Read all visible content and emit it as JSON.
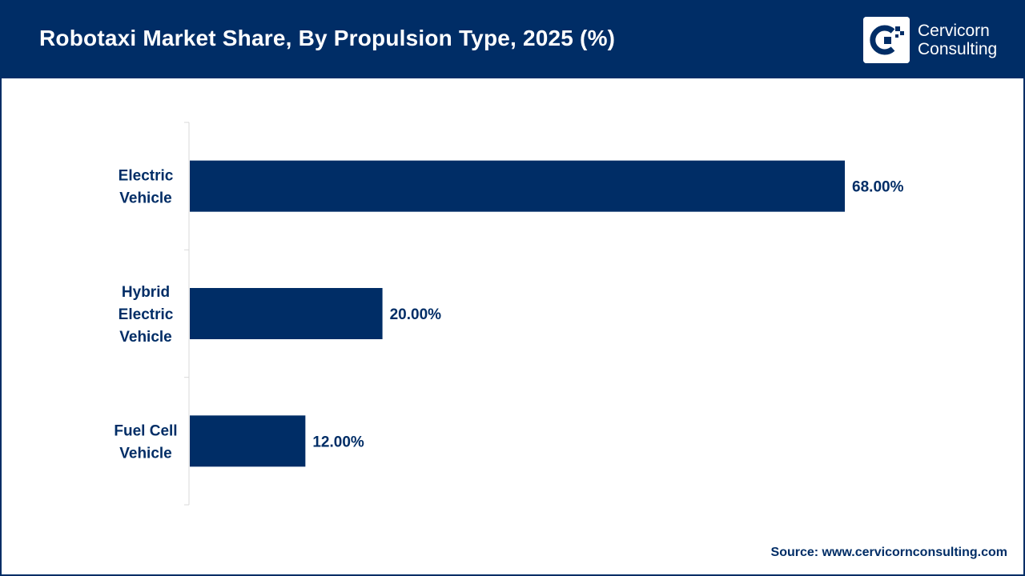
{
  "header": {
    "title": "Robotaxi Market Share, By Propulsion Type, 2025 (%)",
    "logo": {
      "line1": "Cervicorn",
      "line2": "Consulting",
      "icon": "cervicorn-logo-icon"
    }
  },
  "colors": {
    "primary": "#002d66",
    "background": "#ffffff"
  },
  "chart_data": {
    "type": "bar",
    "orientation": "horizontal",
    "categories": [
      [
        "Electric",
        "Vehicle"
      ],
      [
        "Hybrid",
        "Electric",
        "Vehicle"
      ],
      [
        "Fuel Cell",
        "Vehicle"
      ]
    ],
    "values": [
      68.0,
      20.0,
      12.0
    ],
    "value_labels": [
      "68.00%",
      "20.00%",
      "12.00%"
    ],
    "xlim": [
      0,
      100
    ],
    "grid": false,
    "legend": "none",
    "bar_color": "#002d66",
    "title": "Robotaxi Market Share, By Propulsion Type, 2025 (%)"
  },
  "footer": {
    "source": "Source: www.cervicornconsulting.com"
  }
}
